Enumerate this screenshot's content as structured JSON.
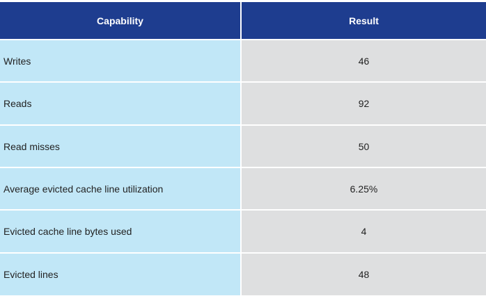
{
  "table": {
    "headers": {
      "capability": "Capability",
      "result": "Result"
    },
    "rows": [
      {
        "capability": "Writes",
        "result": "46"
      },
      {
        "capability": "Reads",
        "result": "92"
      },
      {
        "capability": "Read misses",
        "result": "50"
      },
      {
        "capability": "Average evicted cache line utilization",
        "result": "6.25%"
      },
      {
        "capability": "Evicted cache line bytes used",
        "result": "4"
      },
      {
        "capability": "Evicted lines",
        "result": "48"
      }
    ]
  },
  "colors": {
    "header_bg": "#1e3d8f",
    "capability_bg": "#c1e7f7",
    "result_bg": "#dedfe0"
  }
}
